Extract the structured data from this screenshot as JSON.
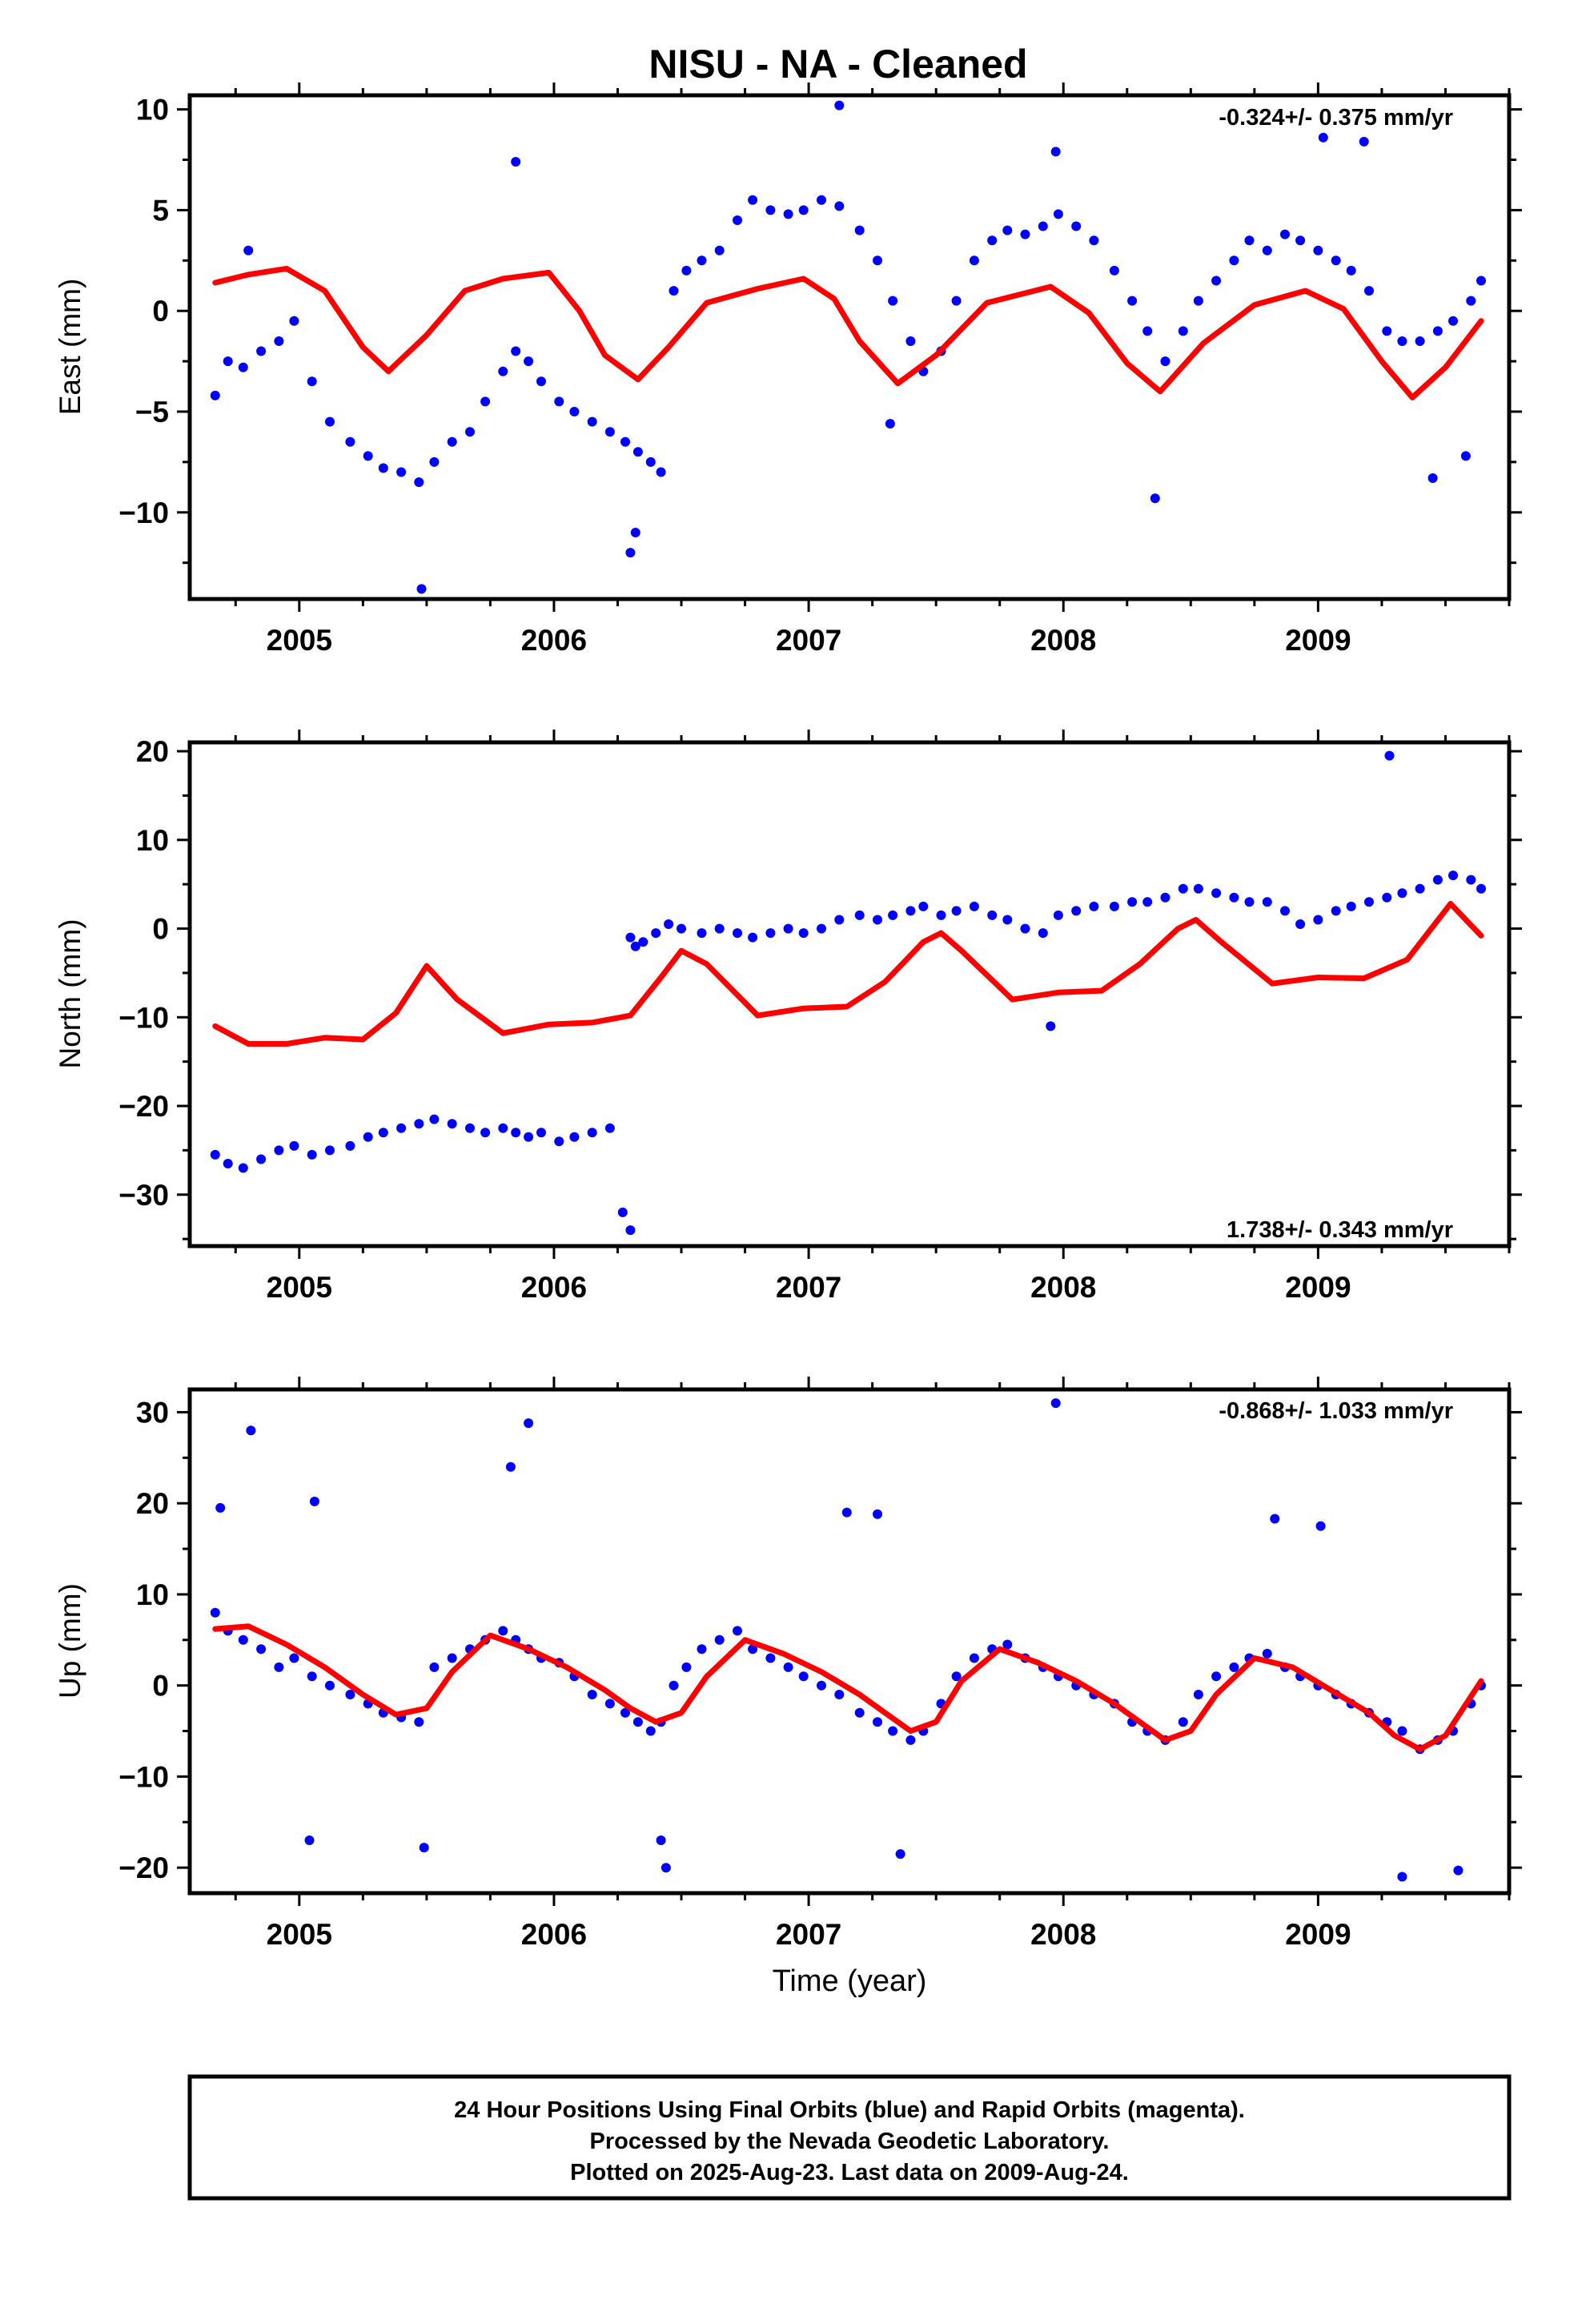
{
  "title": "NISU  - NA - Cleaned",
  "footer": {
    "line1": "24 Hour Positions Using Final Orbits (blue) and Rapid Orbits (magenta).",
    "line2": "Processed by the Nevada Geodetic Laboratory.",
    "line3": "Plotted on 2025-Aug-23. Last data on 2009-Aug-24."
  },
  "colors": {
    "points": "#0000ff",
    "fit": "#ff0000",
    "frame": "#000000",
    "background": "#ffffff"
  },
  "chart_data": [
    {
      "type": "scatter",
      "id": "east",
      "ylabel": "East (mm)",
      "xlabel": "",
      "rate_label": "-0.324+/- 0.375 mm/yr",
      "xlim": [
        2004.57,
        2009.75
      ],
      "ylim": [
        -14.3,
        10.7
      ],
      "xticks": [
        2005,
        2006,
        2007,
        2008,
        2009
      ],
      "xtick_labels": [
        "2005",
        "2006",
        "2007",
        "2008",
        "2009"
      ],
      "yticks": [
        -10,
        -5,
        0,
        5,
        10
      ],
      "ytick_labels": [
        "−10",
        "−5",
        "0",
        "5",
        "10"
      ],
      "grid": false,
      "series": [
        {
          "name": "Final Orbits (blue)",
          "kind": "scatter",
          "x": [
            2004.67,
            2004.72,
            2004.78,
            2004.85,
            2004.92,
            2004.98,
            2005.05,
            2005.12,
            2005.2,
            2005.27,
            2005.33,
            2005.4,
            2005.47,
            2005.53,
            2005.6,
            2005.67,
            2005.73,
            2005.8,
            2005.85,
            2005.9,
            2005.95,
            2006.02,
            2006.08,
            2006.15,
            2006.22,
            2006.28,
            2006.33,
            2006.38,
            2006.42,
            2006.47,
            2006.52,
            2006.58,
            2006.65,
            2006.72,
            2006.78,
            2006.85,
            2006.92,
            2006.98,
            2007.05,
            2007.12,
            2007.2,
            2007.27,
            2007.33,
            2007.4,
            2007.45,
            2007.52,
            2007.58,
            2007.65,
            2007.72,
            2007.78,
            2007.85,
            2007.92,
            2007.98,
            2008.05,
            2008.12,
            2008.2,
            2008.27,
            2008.33,
            2008.4,
            2008.47,
            2008.53,
            2008.6,
            2008.67,
            2008.73,
            2008.8,
            2008.87,
            2008.93,
            2009.0,
            2009.07,
            2009.13,
            2009.2,
            2009.27,
            2009.33,
            2009.4,
            2009.47,
            2009.53,
            2009.6,
            2009.64,
            2004.8,
            2005.85,
            2005.48,
            2006.3,
            2007.12,
            2007.97,
            2009.02,
            2009.18,
            2008.36,
            2009.45,
            2009.58,
            2007.32,
            2006.32
          ],
          "y": [
            -4.2,
            -2.5,
            -2.8,
            -2.0,
            -1.5,
            -0.5,
            -3.5,
            -5.5,
            -6.5,
            -7.2,
            -7.8,
            -8.0,
            -8.5,
            -7.5,
            -6.5,
            -6.0,
            -4.5,
            -3.0,
            -2.0,
            -2.5,
            -3.5,
            -4.5,
            -5.0,
            -5.5,
            -6.0,
            -6.5,
            -7.0,
            -7.5,
            -8.0,
            1.0,
            2.0,
            2.5,
            3.0,
            4.5,
            5.5,
            5.0,
            4.8,
            5.0,
            5.5,
            5.2,
            4.0,
            2.5,
            0.5,
            -1.5,
            -3.0,
            -2.0,
            0.5,
            2.5,
            3.5,
            4.0,
            3.8,
            4.2,
            4.8,
            4.2,
            3.5,
            2.0,
            0.5,
            -1.0,
            -2.5,
            -1.0,
            0.5,
            1.5,
            2.5,
            3.5,
            3.0,
            3.8,
            3.5,
            3.0,
            2.5,
            2.0,
            1.0,
            -1.0,
            -1.5,
            -1.5,
            -1.0,
            -0.5,
            0.5,
            1.5,
            3.0,
            7.4,
            -13.8,
            -12.0,
            10.2,
            7.9,
            8.6,
            8.4,
            -9.3,
            -8.3,
            -7.2,
            -5.6,
            -11.0
          ]
        },
        {
          "name": "",
          "kind": "line",
          "x": [
            2004.67,
            2004.8,
            2004.95,
            2005.1,
            2005.25,
            2005.35,
            2005.5,
            2005.65,
            2005.8,
            2005.98,
            2006.1,
            2006.2,
            2006.33,
            2006.45,
            2006.6,
            2006.8,
            2006.98,
            2007.1,
            2007.2,
            2007.35,
            2007.5,
            2007.7,
            2007.95,
            2008.1,
            2008.25,
            2008.38,
            2008.55,
            2008.75,
            2008.95,
            2009.1,
            2009.25,
            2009.37,
            2009.5,
            2009.64
          ],
          "y": [
            1.4,
            1.8,
            2.1,
            1.0,
            -1.8,
            -3.0,
            -1.2,
            1.0,
            1.6,
            1.9,
            0.0,
            -2.2,
            -3.4,
            -1.8,
            0.4,
            1.1,
            1.6,
            0.6,
            -1.5,
            -3.6,
            -2.2,
            0.4,
            1.2,
            -0.1,
            -2.6,
            -4.0,
            -1.6,
            0.3,
            1.0,
            0.1,
            -2.5,
            -4.3,
            -2.8,
            -0.5
          ]
        }
      ]
    },
    {
      "type": "scatter",
      "id": "north",
      "ylabel": "North (mm)",
      "xlabel": "",
      "rate_label": "1.738+/- 0.343 mm/yr",
      "xlim": [
        2004.57,
        2009.75
      ],
      "ylim": [
        -35.8,
        21
      ],
      "xticks": [
        2005,
        2006,
        2007,
        2008,
        2009
      ],
      "xtick_labels": [
        "2005",
        "2006",
        "2007",
        "2008",
        "2009"
      ],
      "yticks": [
        -30,
        -20,
        -10,
        0,
        10,
        20
      ],
      "ytick_labels": [
        "−30",
        "−20",
        "−10",
        "0",
        "10",
        "20"
      ],
      "grid": false,
      "series": [
        {
          "name": "Final Orbits (blue)",
          "kind": "scatter",
          "x": [
            2004.67,
            2004.72,
            2004.78,
            2004.85,
            2004.92,
            2004.98,
            2005.05,
            2005.12,
            2005.2,
            2005.27,
            2005.33,
            2005.4,
            2005.47,
            2005.53,
            2005.6,
            2005.67,
            2005.73,
            2005.8,
            2005.85,
            2005.9,
            2005.95,
            2006.02,
            2006.08,
            2006.15,
            2006.22,
            2006.27,
            2006.3,
            2006.3,
            2006.32,
            2006.35,
            2006.4,
            2006.45,
            2006.5,
            2006.58,
            2006.65,
            2006.72,
            2006.78,
            2006.85,
            2006.92,
            2006.98,
            2007.05,
            2007.12,
            2007.2,
            2007.27,
            2007.33,
            2007.4,
            2007.45,
            2007.52,
            2007.58,
            2007.65,
            2007.72,
            2007.78,
            2007.85,
            2007.92,
            2007.98,
            2008.05,
            2008.12,
            2008.2,
            2008.27,
            2008.33,
            2008.4,
            2008.47,
            2008.53,
            2008.6,
            2008.67,
            2008.73,
            2008.8,
            2008.87,
            2008.93,
            2009.0,
            2009.07,
            2009.13,
            2009.2,
            2009.27,
            2009.33,
            2009.4,
            2009.47,
            2009.53,
            2009.6,
            2009.64,
            2009.28,
            2007.95
          ],
          "y": [
            -25.5,
            -26.5,
            -27.0,
            -26.0,
            -25.0,
            -24.5,
            -25.5,
            -25.0,
            -24.5,
            -23.5,
            -23.0,
            -22.5,
            -22.0,
            -21.5,
            -22.0,
            -22.5,
            -23.0,
            -22.5,
            -23.0,
            -23.5,
            -23.0,
            -24.0,
            -23.5,
            -23.0,
            -22.5,
            -32.0,
            -34.0,
            -1.0,
            -2.0,
            -1.5,
            -0.5,
            0.5,
            0.0,
            -0.5,
            0.0,
            -0.5,
            -1.0,
            -0.5,
            0.0,
            -0.5,
            0.0,
            1.0,
            1.5,
            1.0,
            1.5,
            2.0,
            2.5,
            1.5,
            2.0,
            2.5,
            1.5,
            1.0,
            0.0,
            -0.5,
            1.5,
            2.0,
            2.5,
            2.5,
            3.0,
            3.0,
            3.5,
            4.5,
            4.5,
            4.0,
            3.5,
            3.0,
            3.0,
            2.0,
            0.5,
            1.0,
            2.0,
            2.5,
            3.0,
            3.5,
            4.0,
            4.5,
            5.5,
            6.0,
            5.5,
            4.5,
            19.5,
            -11.0
          ]
        },
        {
          "name": "",
          "kind": "line",
          "x": [
            2004.67,
            2004.8,
            2004.95,
            2005.1,
            2005.25,
            2005.38,
            2005.5,
            2005.62,
            2005.8,
            2005.98,
            2006.15,
            2006.3,
            2006.42,
            2006.5,
            2006.6,
            2006.8,
            2006.98,
            2007.15,
            2007.3,
            2007.45,
            2007.52,
            2007.6,
            2007.8,
            2007.98,
            2008.15,
            2008.3,
            2008.45,
            2008.52,
            2008.62,
            2008.82,
            2009.0,
            2009.18,
            2009.35,
            2009.52,
            2009.64
          ],
          "y": [
            -11.0,
            -13.0,
            -13.0,
            -12.3,
            -12.5,
            -9.5,
            -4.2,
            -8.0,
            -11.8,
            -10.8,
            -10.6,
            -9.8,
            -5.5,
            -2.5,
            -4.0,
            -9.8,
            -9.0,
            -8.8,
            -6.0,
            -1.5,
            -0.5,
            -2.5,
            -8.0,
            -7.2,
            -7.0,
            -4.0,
            0.0,
            1.0,
            -1.5,
            -6.2,
            -5.5,
            -5.6,
            -3.5,
            2.8,
            -0.8
          ]
        }
      ]
    },
    {
      "type": "scatter",
      "id": "up",
      "ylabel": "Up (mm)",
      "xlabel": "Time (year)",
      "rate_label": "-0.868+/- 1.033 mm/yr",
      "xlim": [
        2004.57,
        2009.75
      ],
      "ylim": [
        -22.8,
        32.5
      ],
      "xticks": [
        2005,
        2006,
        2007,
        2008,
        2009
      ],
      "xtick_labels": [
        "2005",
        "2006",
        "2007",
        "2008",
        "2009"
      ],
      "yticks": [
        -20,
        -10,
        0,
        10,
        20,
        30
      ],
      "ytick_labels": [
        "−20",
        "−10",
        "0",
        "10",
        "20",
        "30"
      ],
      "grid": false,
      "series": [
        {
          "name": "Final Orbits (blue)",
          "kind": "scatter",
          "x": [
            2004.67,
            2004.72,
            2004.78,
            2004.85,
            2004.92,
            2004.98,
            2005.05,
            2005.12,
            2005.2,
            2005.27,
            2005.33,
            2005.4,
            2005.47,
            2005.53,
            2005.6,
            2005.67,
            2005.73,
            2005.8,
            2005.85,
            2005.9,
            2005.95,
            2006.02,
            2006.08,
            2006.15,
            2006.22,
            2006.28,
            2006.33,
            2006.38,
            2006.42,
            2006.47,
            2006.52,
            2006.58,
            2006.65,
            2006.72,
            2006.78,
            2006.85,
            2006.92,
            2006.98,
            2007.05,
            2007.12,
            2007.2,
            2007.27,
            2007.33,
            2007.4,
            2007.45,
            2007.52,
            2007.58,
            2007.65,
            2007.72,
            2007.78,
            2007.85,
            2007.92,
            2007.98,
            2008.05,
            2008.12,
            2008.2,
            2008.27,
            2008.33,
            2008.4,
            2008.47,
            2008.53,
            2008.6,
            2008.67,
            2008.73,
            2008.8,
            2008.87,
            2008.93,
            2009.0,
            2009.07,
            2009.13,
            2009.2,
            2009.27,
            2009.33,
            2009.4,
            2009.47,
            2009.53,
            2009.6,
            2009.64,
            2004.81,
            2005.9,
            2005.83,
            2007.97,
            2005.04,
            2005.49,
            2006.44,
            2006.42,
            2007.36,
            2009.33,
            2009.55,
            2007.15,
            2007.27,
            2008.83,
            2009.01,
            2004.69,
            2005.06
          ],
          "y": [
            8.0,
            6.0,
            5.0,
            4.0,
            2.0,
            3.0,
            1.0,
            0.0,
            -1.0,
            -2.0,
            -3.0,
            -3.5,
            -4.0,
            2.0,
            3.0,
            4.0,
            5.0,
            6.0,
            5.0,
            4.0,
            3.0,
            2.5,
            1.0,
            -1.0,
            -2.0,
            -3.0,
            -4.0,
            -5.0,
            -4.0,
            0.0,
            2.0,
            4.0,
            5.0,
            6.0,
            4.0,
            3.0,
            2.0,
            1.0,
            0.0,
            -1.0,
            -3.0,
            -4.0,
            -5.0,
            -6.0,
            -5.0,
            -2.0,
            1.0,
            3.0,
            4.0,
            4.5,
            3.0,
            2.0,
            1.0,
            0.0,
            -1.0,
            -2.0,
            -4.0,
            -5.0,
            -6.0,
            -4.0,
            -1.0,
            1.0,
            2.0,
            3.0,
            3.5,
            2.0,
            1.0,
            0.0,
            -1.0,
            -2.0,
            -3.0,
            -4.0,
            -5.0,
            -7.0,
            -6.0,
            -5.0,
            -2.0,
            0.0,
            28.0,
            28.8,
            24.0,
            31.0,
            -17.0,
            -17.8,
            -20.0,
            -17.0,
            -18.5,
            -21.0,
            -20.3,
            19.0,
            18.8,
            18.3,
            17.5,
            19.5,
            20.2
          ]
        },
        {
          "name": "",
          "kind": "line",
          "x": [
            2004.67,
            2004.8,
            2004.95,
            2005.1,
            2005.25,
            2005.38,
            2005.5,
            2005.6,
            2005.75,
            2005.9,
            2006.05,
            2006.2,
            2006.3,
            2006.4,
            2006.5,
            2006.6,
            2006.75,
            2006.9,
            2007.05,
            2007.2,
            2007.3,
            2007.4,
            2007.5,
            2007.6,
            2007.75,
            2007.9,
            2008.05,
            2008.2,
            2008.3,
            2008.4,
            2008.5,
            2008.6,
            2008.75,
            2008.9,
            2009.05,
            2009.2,
            2009.3,
            2009.4,
            2009.5,
            2009.64
          ],
          "y": [
            6.2,
            6.5,
            4.5,
            2.0,
            -1.0,
            -3.2,
            -2.5,
            1.5,
            5.5,
            4.0,
            2.0,
            -0.5,
            -2.5,
            -4.0,
            -3.0,
            1.0,
            5.0,
            3.5,
            1.5,
            -1.0,
            -3.0,
            -5.0,
            -4.0,
            0.5,
            4.0,
            2.5,
            0.5,
            -2.0,
            -4.0,
            -6.0,
            -5.0,
            -1.0,
            3.0,
            2.0,
            -0.5,
            -3.0,
            -5.5,
            -7.0,
            -5.5,
            0.5
          ]
        }
      ]
    }
  ]
}
